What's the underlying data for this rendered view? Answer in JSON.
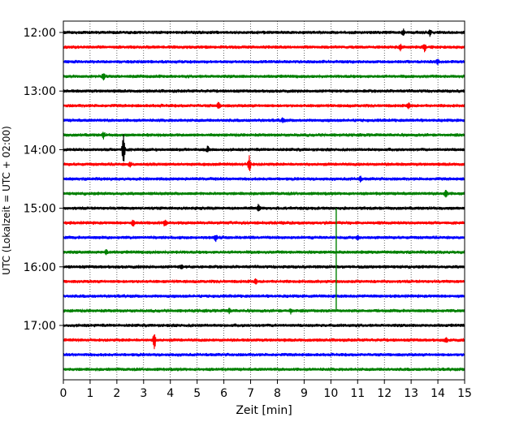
{
  "chart_data": {
    "type": "line",
    "title": "",
    "xlabel": "Zeit  [min]",
    "ylabel": "UTC (Lokalzeit = UTC + 02:00)",
    "xlim": [
      0,
      15
    ],
    "x_ticks": [
      0,
      1,
      2,
      3,
      4,
      5,
      6,
      7,
      8,
      9,
      10,
      11,
      12,
      13,
      14,
      15
    ],
    "x_tick_labels": [
      "0",
      "1",
      "2",
      "3",
      "4",
      "5",
      "6",
      "7",
      "8",
      "9",
      "10",
      "11",
      "12",
      "13",
      "14",
      "15"
    ],
    "y_tick_labels": [
      "12:00",
      "13:00",
      "14:00",
      "15:00",
      "16:00",
      "17:00"
    ],
    "y_tick_rows": [
      0,
      4,
      8,
      12,
      16,
      20
    ],
    "grid": "vertical dotted",
    "legend": "none",
    "trace_interval_minutes": 15,
    "trace_colors": [
      "#000000",
      "#ff0000",
      "#0000ff",
      "#008000"
    ],
    "traces": [
      {
        "start": "12:00",
        "events": [
          [
            12.7,
            0.4
          ],
          [
            13.7,
            0.4
          ]
        ]
      },
      {
        "start": "12:15",
        "events": [
          [
            13.5,
            0.5
          ],
          [
            12.6,
            0.4
          ]
        ]
      },
      {
        "start": "12:30",
        "events": [
          [
            14.0,
            0.3
          ]
        ]
      },
      {
        "start": "12:45",
        "events": [
          [
            1.5,
            0.4
          ]
        ]
      },
      {
        "start": "13:00",
        "events": []
      },
      {
        "start": "13:15",
        "events": [
          [
            5.8,
            0.4
          ],
          [
            12.9,
            0.3
          ]
        ]
      },
      {
        "start": "13:30",
        "events": [
          [
            8.2,
            0.3
          ]
        ]
      },
      {
        "start": "13:45",
        "events": [
          [
            1.5,
            0.4
          ]
        ]
      },
      {
        "start": "14:00",
        "events": [
          [
            2.25,
            2.3
          ],
          [
            5.4,
            0.4
          ]
        ]
      },
      {
        "start": "14:15",
        "events": [
          [
            6.95,
            1.1
          ],
          [
            2.5,
            0.3
          ]
        ]
      },
      {
        "start": "14:30",
        "events": [
          [
            11.1,
            0.3
          ]
        ]
      },
      {
        "start": "14:45",
        "events": [
          [
            14.3,
            0.6
          ]
        ]
      },
      {
        "start": "15:00",
        "events": [
          [
            7.3,
            0.5
          ]
        ]
      },
      {
        "start": "15:15",
        "events": [
          [
            2.6,
            0.4
          ],
          [
            3.8,
            0.4
          ]
        ]
      },
      {
        "start": "15:30",
        "events": [
          [
            5.7,
            0.4
          ],
          [
            11.0,
            0.3
          ]
        ]
      },
      {
        "start": "15:45",
        "events": [
          [
            1.6,
            0.4
          ]
        ]
      },
      {
        "start": "16:00",
        "events": [
          [
            4.4,
            0.3
          ]
        ]
      },
      {
        "start": "16:15",
        "events": [
          [
            7.2,
            0.3
          ]
        ]
      },
      {
        "start": "16:30",
        "events": []
      },
      {
        "start": "16:45",
        "events": [
          [
            6.2,
            0.3
          ],
          [
            8.5,
            0.3
          ]
        ]
      },
      {
        "start": "17:00",
        "events": []
      },
      {
        "start": "17:15",
        "events": [
          [
            3.4,
            1.1
          ],
          [
            14.3,
            0.3
          ]
        ]
      },
      {
        "start": "17:30",
        "events": []
      },
      {
        "start": "17:45",
        "events": []
      }
    ],
    "spanning_event": {
      "x": 10.2,
      "trace_color": "#008000",
      "from_row": 12,
      "to_row": 19
    }
  }
}
